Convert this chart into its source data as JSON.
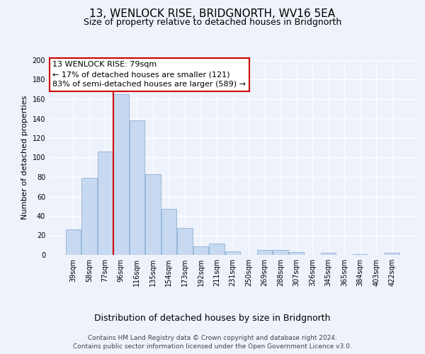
{
  "title": "13, WENLOCK RISE, BRIDGNORTH, WV16 5EA",
  "subtitle": "Size of property relative to detached houses in Bridgnorth",
  "xlabel": "Distribution of detached houses by size in Bridgnorth",
  "ylabel": "Number of detached properties",
  "bar_labels": [
    "39sqm",
    "58sqm",
    "77sqm",
    "96sqm",
    "116sqm",
    "135sqm",
    "154sqm",
    "173sqm",
    "192sqm",
    "211sqm",
    "231sqm",
    "250sqm",
    "269sqm",
    "288sqm",
    "307sqm",
    "326sqm",
    "345sqm",
    "365sqm",
    "384sqm",
    "403sqm",
    "422sqm"
  ],
  "bar_values": [
    26,
    79,
    106,
    165,
    138,
    83,
    47,
    28,
    9,
    12,
    4,
    0,
    5,
    5,
    3,
    0,
    2,
    0,
    1,
    0,
    2
  ],
  "bar_color": "#c6d9f1",
  "bar_edge_color": "#9ab7d8",
  "annotation_title": "13 WENLOCK RISE: 79sqm",
  "annotation_line1": "← 17% of detached houses are smaller (121)",
  "annotation_line2": "83% of semi-detached houses are larger (589) →",
  "annotation_box_color": "#ffffff",
  "annotation_box_edge": "#cc0000",
  "vline_color": "#cc0000",
  "vline_x_index": 2.5,
  "ylim": [
    0,
    200
  ],
  "yticks": [
    0,
    20,
    40,
    60,
    80,
    100,
    120,
    140,
    160,
    180,
    200
  ],
  "footer1": "Contains HM Land Registry data © Crown copyright and database right 2024.",
  "footer2": "Contains public sector information licensed under the Open Government Licence v3.0.",
  "bg_color": "#eef2fb",
  "plot_bg_color": "#eef2fb",
  "grid_color": "#ffffff",
  "title_fontsize": 11,
  "subtitle_fontsize": 9,
  "xlabel_fontsize": 9,
  "ylabel_fontsize": 8,
  "tick_fontsize": 7,
  "footer_fontsize": 6.5
}
